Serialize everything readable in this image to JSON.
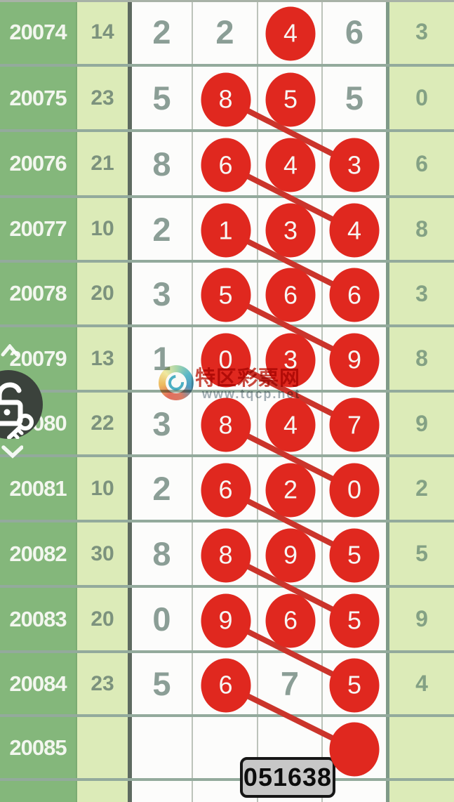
{
  "watermark": {
    "title": "特区彩票网",
    "url": "www.tqcp.net"
  },
  "annotation": {
    "code": "051638"
  },
  "icons": {
    "lock_widget": "unlocked-padlock-with-key-icon",
    "scroll_up": "chevron-up-icon",
    "scroll_down": "chevron-down-icon",
    "logo": "rainbow-swirl-logo-icon"
  },
  "colors": {
    "ball_red": "#e0281f",
    "line_red": "#cb342b",
    "period_green": "#84b77b",
    "pale_green": "#dcebb8",
    "separator": "#93aa9c",
    "box_gray": "#c7c7c7"
  },
  "table": {
    "rows": [
      {
        "period": "20074",
        "count": "14",
        "cells": [
          {
            "v": "2",
            "ball": false
          },
          {
            "v": "2",
            "ball": false
          },
          {
            "v": "4",
            "ball": true
          },
          {
            "v": "6",
            "ball": false
          }
        ],
        "tail": "3"
      },
      {
        "period": "20075",
        "count": "23",
        "cells": [
          {
            "v": "5",
            "ball": false
          },
          {
            "v": "8",
            "ball": true
          },
          {
            "v": "5",
            "ball": true
          },
          {
            "v": "5",
            "ball": false
          }
        ],
        "tail": "0"
      },
      {
        "period": "20076",
        "count": "21",
        "cells": [
          {
            "v": "8",
            "ball": false
          },
          {
            "v": "6",
            "ball": true
          },
          {
            "v": "4",
            "ball": true
          },
          {
            "v": "3",
            "ball": true
          }
        ],
        "tail": "6"
      },
      {
        "period": "20077",
        "count": "10",
        "cells": [
          {
            "v": "2",
            "ball": false
          },
          {
            "v": "1",
            "ball": true
          },
          {
            "v": "3",
            "ball": true
          },
          {
            "v": "4",
            "ball": true
          }
        ],
        "tail": "8"
      },
      {
        "period": "20078",
        "count": "20",
        "cells": [
          {
            "v": "3",
            "ball": false
          },
          {
            "v": "5",
            "ball": true
          },
          {
            "v": "6",
            "ball": true
          },
          {
            "v": "6",
            "ball": true
          }
        ],
        "tail": "3"
      },
      {
        "period": "20079",
        "count": "13",
        "cells": [
          {
            "v": "1",
            "ball": false
          },
          {
            "v": "0",
            "ball": true
          },
          {
            "v": "3",
            "ball": true
          },
          {
            "v": "9",
            "ball": true
          }
        ],
        "tail": "8"
      },
      {
        "period": "20080",
        "count": "22",
        "cells": [
          {
            "v": "3",
            "ball": false
          },
          {
            "v": "8",
            "ball": true
          },
          {
            "v": "4",
            "ball": true
          },
          {
            "v": "7",
            "ball": true
          }
        ],
        "tail": "9"
      },
      {
        "period": "20081",
        "count": "10",
        "cells": [
          {
            "v": "2",
            "ball": false
          },
          {
            "v": "6",
            "ball": true
          },
          {
            "v": "2",
            "ball": true
          },
          {
            "v": "0",
            "ball": true
          }
        ],
        "tail": "2"
      },
      {
        "period": "20082",
        "count": "30",
        "cells": [
          {
            "v": "8",
            "ball": false
          },
          {
            "v": "8",
            "ball": true
          },
          {
            "v": "9",
            "ball": true
          },
          {
            "v": "5",
            "ball": true
          }
        ],
        "tail": "5"
      },
      {
        "period": "20083",
        "count": "20",
        "cells": [
          {
            "v": "0",
            "ball": false
          },
          {
            "v": "9",
            "ball": true
          },
          {
            "v": "6",
            "ball": true
          },
          {
            "v": "5",
            "ball": true
          }
        ],
        "tail": "9"
      },
      {
        "period": "20084",
        "count": "23",
        "cells": [
          {
            "v": "5",
            "ball": false
          },
          {
            "v": "6",
            "ball": true
          },
          {
            "v": "7",
            "ball": false
          },
          {
            "v": "5",
            "ball": true
          }
        ],
        "tail": "4"
      },
      {
        "period": "20085",
        "count": "",
        "cells": [
          {
            "v": "",
            "ball": false
          },
          {
            "v": "",
            "ball": false
          },
          {
            "v": "",
            "ball": false
          },
          {
            "v": "",
            "ball": true
          }
        ],
        "tail": ""
      }
    ],
    "lines": [
      {
        "from": [
          1,
          1
        ],
        "to": [
          2,
          3
        ]
      },
      {
        "from": [
          2,
          1
        ],
        "to": [
          3,
          3
        ]
      },
      {
        "from": [
          3,
          1
        ],
        "to": [
          4,
          3
        ]
      },
      {
        "from": [
          4,
          1
        ],
        "to": [
          5,
          3
        ]
      },
      {
        "from": [
          5,
          1
        ],
        "to": [
          6,
          3
        ]
      },
      {
        "from": [
          6,
          1
        ],
        "to": [
          7,
          3
        ]
      },
      {
        "from": [
          7,
          1
        ],
        "to": [
          8,
          3
        ]
      },
      {
        "from": [
          8,
          1
        ],
        "to": [
          9,
          3
        ]
      },
      {
        "from": [
          9,
          1
        ],
        "to": [
          10,
          3
        ]
      },
      {
        "from": [
          10,
          1
        ],
        "to": [
          11,
          3
        ]
      }
    ]
  }
}
